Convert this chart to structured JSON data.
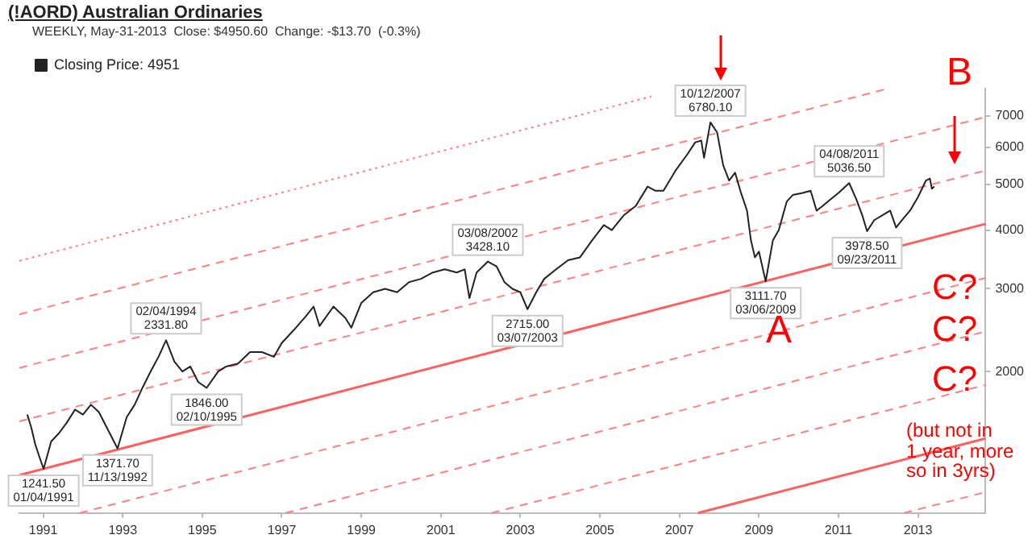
{
  "chart_data": {
    "type": "line",
    "title": "(!AORD) Australian Ordinaries",
    "subtitle": "WEEKLY, May-31-2013  Close: $4950.60  Change: -$13.70  (-0.3%)",
    "log": "y",
    "grid": false,
    "legend": "top left",
    "xlim": [
      1990.4,
      2014.7
    ],
    "xticks": [
      1991,
      1993,
      1995,
      1997,
      1999,
      2001,
      2003,
      2005,
      2007,
      2009,
      2011,
      2013
    ],
    "ylim": [
      1000,
      8000
    ],
    "yticks": [
      2000,
      3000,
      4000,
      5000,
      6000,
      7000
    ],
    "series": [
      {
        "name": "Closing Price: 4951",
        "color": "#222222",
        "line_style": "solid",
        "x": [
          1990.6,
          1990.7,
          1990.8,
          1990.9,
          1991.01,
          1991.2,
          1991.4,
          1991.6,
          1991.8,
          1992.0,
          1992.2,
          1992.4,
          1992.6,
          1992.87,
          1993.1,
          1993.3,
          1993.5,
          1993.7,
          1993.9,
          1994.09,
          1994.3,
          1994.5,
          1994.7,
          1994.9,
          1995.11,
          1995.4,
          1995.6,
          1995.9,
          1996.2,
          1996.5,
          1996.8,
          1997.0,
          1997.3,
          1997.6,
          1997.8,
          1997.95,
          1998.3,
          1998.6,
          1998.75,
          1999.0,
          1999.3,
          1999.6,
          1999.9,
          2000.2,
          2000.5,
          2000.8,
          2001.1,
          2001.4,
          2001.6,
          2001.72,
          2001.9,
          2002.18,
          2002.4,
          2002.6,
          2002.8,
          2003.0,
          2003.18,
          2003.4,
          2003.6,
          2003.9,
          2004.2,
          2004.5,
          2004.8,
          2005.1,
          2005.3,
          2005.6,
          2005.9,
          2006.2,
          2006.4,
          2006.6,
          2006.9,
          2007.2,
          2007.4,
          2007.55,
          2007.62,
          2007.78,
          2007.95,
          2008.1,
          2008.25,
          2008.4,
          2008.55,
          2008.7,
          2008.8,
          2008.9,
          2009.0,
          2009.17,
          2009.35,
          2009.5,
          2009.7,
          2009.85,
          2010.1,
          2010.3,
          2010.45,
          2010.6,
          2010.8,
          2011.0,
          2011.27,
          2011.45,
          2011.6,
          2011.72,
          2011.9,
          2012.1,
          2012.3,
          2012.45,
          2012.6,
          2012.8,
          2013.0,
          2013.2,
          2013.3,
          2013.35,
          2013.41
        ],
        "values": [
          1620,
          1520,
          1400,
          1320,
          1241.5,
          1420,
          1480,
          1560,
          1660,
          1620,
          1700,
          1640,
          1520,
          1371.7,
          1600,
          1700,
          1850,
          2000,
          2150,
          2331.8,
          2100,
          2000,
          2050,
          1900,
          1846,
          2000,
          2050,
          2080,
          2200,
          2200,
          2150,
          2300,
          2450,
          2620,
          2750,
          2500,
          2750,
          2600,
          2480,
          2800,
          2950,
          3000,
          2950,
          3100,
          3150,
          3250,
          3300,
          3250,
          3300,
          2866,
          3250,
          3428.1,
          3350,
          3100,
          3000,
          2950,
          2715,
          2950,
          3150,
          3300,
          3450,
          3500,
          3800,
          4100,
          4000,
          4300,
          4500,
          4950,
          4850,
          4850,
          5350,
          5800,
          6150,
          6200,
          5700,
          6780.1,
          6450,
          5500,
          5100,
          5300,
          4800,
          4400,
          3800,
          3500,
          3600,
          3111.7,
          3800,
          4000,
          4600,
          4750,
          4800,
          4850,
          4400,
          4500,
          4650,
          4800,
          5036.5,
          4650,
          4300,
          3978.5,
          4200,
          4300,
          4400,
          4050,
          4200,
          4400,
          4700,
          5100,
          5150,
          4900,
          4951
        ]
      },
      {
        "color": "#ff8080",
        "line_style": "dotted",
        "x": [
          1990.4,
          2006.3
        ],
        "values": [
          3440,
          7700
        ]
      },
      {
        "color": "#ff8080",
        "line_style": "dashed",
        "x": [
          1990.4,
          2012.24
        ],
        "values": [
          2647,
          8000
        ]
      },
      {
        "color": "#ff8080",
        "line_style": "dashed",
        "x": [
          1990.4,
          2014.7
        ],
        "values": [
          2036,
          6963
        ]
      },
      {
        "color": "#ff8080",
        "line_style": "dashed",
        "x": [
          1990.4,
          2014.7
        ],
        "values": [
          1567,
          5356
        ]
      },
      {
        "color": "#ff6060",
        "line_style": "solid",
        "x": [
          1990.4,
          2014.7
        ],
        "values": [
          1204,
          4124
        ]
      },
      {
        "color": "#ff8080",
        "line_style": "dashed",
        "x": [
          1991.92,
          2014.7
        ],
        "values": [
          1000,
          3165
        ]
      },
      {
        "color": "#ff8080",
        "line_style": "dashed",
        "x": [
          1997.1,
          2014.7
        ],
        "values": [
          1000,
          2434
        ]
      },
      {
        "color": "#ff8080",
        "line_style": "dashed",
        "x": [
          2002.28,
          2014.7
        ],
        "values": [
          1000,
          1873
        ]
      },
      {
        "color": "#ff6060",
        "line_style": "solid",
        "x": [
          2007.47,
          2014.7
        ],
        "values": [
          1000,
          1441
        ]
      },
      {
        "color": "#ff8080",
        "line_style": "dashed",
        "x": [
          2012.65,
          2014.7
        ],
        "values": [
          1000,
          1108
        ]
      }
    ],
    "annotations": [
      {
        "text": "10/12/2007\n6780.10",
        "x": 2007.78,
        "y": 6780.1
      },
      {
        "text": "04/08/2011\n5036.50",
        "x": 2011.27,
        "y": 5036.5
      },
      {
        "text": "03/08/2002\n3428.10",
        "x": 2002.18,
        "y": 3428.1
      },
      {
        "text": "02/04/1994\n2331.80",
        "x": 1994.09,
        "y": 2331.8
      },
      {
        "text": "1846.00\n02/10/1995",
        "x": 1995.11,
        "y": 1846
      },
      {
        "text": "1371.70\n11/13/1992",
        "x": 1992.87,
        "y": 1371.7
      },
      {
        "text": "1241.50\n01/04/1991",
        "x": 1991.01,
        "y": 1241.5
      },
      {
        "text": "2715.00\n03/07/2003",
        "x": 2003.18,
        "y": 2715
      },
      {
        "text": "3111.70\n03/06/2009",
        "x": 2009.17,
        "y": 3111.7
      },
      {
        "text": "3978.50\n09/23/2011",
        "x": 2011.72,
        "y": 3978.5
      },
      "A",
      "B",
      "C?",
      "C?",
      "C?",
      "(but not in\n1 year, more\nso in 3yrs)"
    ]
  }
}
